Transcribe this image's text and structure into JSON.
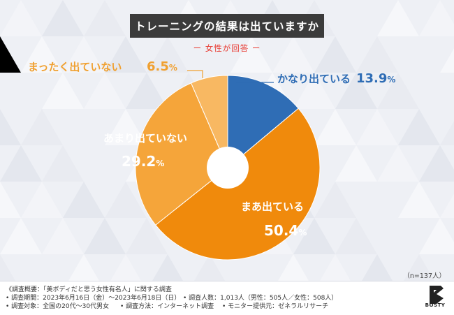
{
  "title": "トレーニングの結果は出ていますか",
  "subtitle": "ー 女性が回答 ー",
  "sample_note": "（n=137人）",
  "chart_data": {
    "type": "pie",
    "donut": true,
    "title": "トレーニングの結果は出ていますか",
    "subtitle": "女性が回答",
    "categories": [
      "かなり出ている",
      "まあ出ている",
      "あまり出ていない",
      "まったく出ていない"
    ],
    "values": [
      13.9,
      50.4,
      29.2,
      6.5
    ],
    "value_labels": [
      "13.9%",
      "50.4%",
      "29.2%",
      "6.5%"
    ],
    "colors": [
      "#2f6db5",
      "#f08a0c",
      "#f5a53a",
      "#f8b862"
    ],
    "label_colors": [
      "#2f6db5",
      "#ffffff",
      "#ffffff",
      "#f0a030"
    ],
    "n": 137
  },
  "footer": {
    "overview": "《調査概要：「美ボディだと思う女性有名人」に関する調査",
    "period": "• 調査期間：2023年6月16日（金）〜2023年6月18日（日）",
    "respondents": "• 調査人数：1,013人（男性：505人／女性：508人）",
    "target": "• 調査対象：全国の20代〜30代男女",
    "method": "• 調査方法：インターネット調査",
    "provider": "• モニター提供元：ゼネラルリサーチ"
  },
  "logo": {
    "text": "BOSTY",
    "color": "#222222"
  }
}
